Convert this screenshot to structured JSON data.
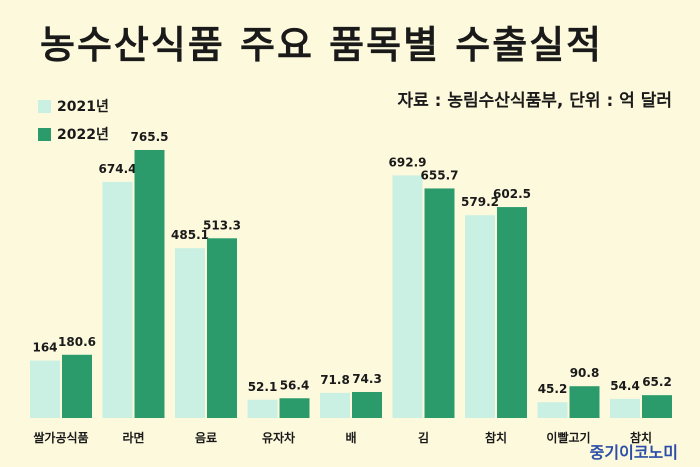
{
  "title": "농수산식품 주요 품목별 수출실적",
  "source": "자료 : 농림수산식품부, 단위 : 억 달러",
  "brand": "중기이코노미",
  "colors": {
    "s2021": "#c9f0e3",
    "s2022": "#2b9b6c",
    "background": "#fdf9dc"
  },
  "chart_data": {
    "type": "bar",
    "title": "농수산식품 주요 품목별 수출실적",
    "categories": [
      "쌀가공식품",
      "라면",
      "음료",
      "유자차",
      "배",
      "김",
      "참치",
      "이빨고기",
      "참치"
    ],
    "series": [
      {
        "name": "2021년",
        "values": [
          164,
          674.4,
          485.1,
          52.1,
          71.8,
          692.9,
          579.2,
          45.2,
          54.4
        ]
      },
      {
        "name": "2022년",
        "values": [
          180.6,
          765.5,
          513.3,
          56.4,
          74.3,
          655.7,
          602.5,
          90.8,
          65.2
        ]
      }
    ],
    "value_labels": [
      [
        "164",
        "674.4",
        "485.1",
        "52.1",
        "71.8",
        "692.9",
        "579.2",
        "45.2",
        "54.4"
      ],
      [
        "180.6",
        "765.5",
        "513.3",
        "56.4",
        "74.3",
        "655.7",
        "602.5",
        "90.8",
        "65.2"
      ]
    ],
    "ylim": [
      0,
      800
    ],
    "grid": false,
    "legend": "top-left"
  }
}
